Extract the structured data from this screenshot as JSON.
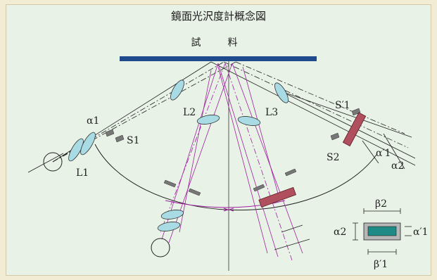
{
  "title": "鏡面光沢度計概念図",
  "sample_label": "試　料",
  "labels": {
    "alpha1": "α1",
    "s1": "S1",
    "l1": "L1",
    "l2": "L2",
    "l3": "L3",
    "s1_prime": "S′1",
    "s2": "S2",
    "alpha_prime1_right": "α′1",
    "alpha2_right": "α2",
    "beta2": "β2",
    "alpha2_inset": "α2",
    "alpha_prime1_inset": "α′1",
    "beta_prime1": "β′1"
  },
  "colors": {
    "background": "#f3ecd4",
    "panel": "#e8f2e6",
    "sample_bar": "#1f4a8c",
    "lens": "#a8dbe3",
    "detector": "#b0505e",
    "ray_purple": "#a020a0",
    "inset_gray": "#b7b7b7",
    "inset_teal": "#1f8a86"
  }
}
